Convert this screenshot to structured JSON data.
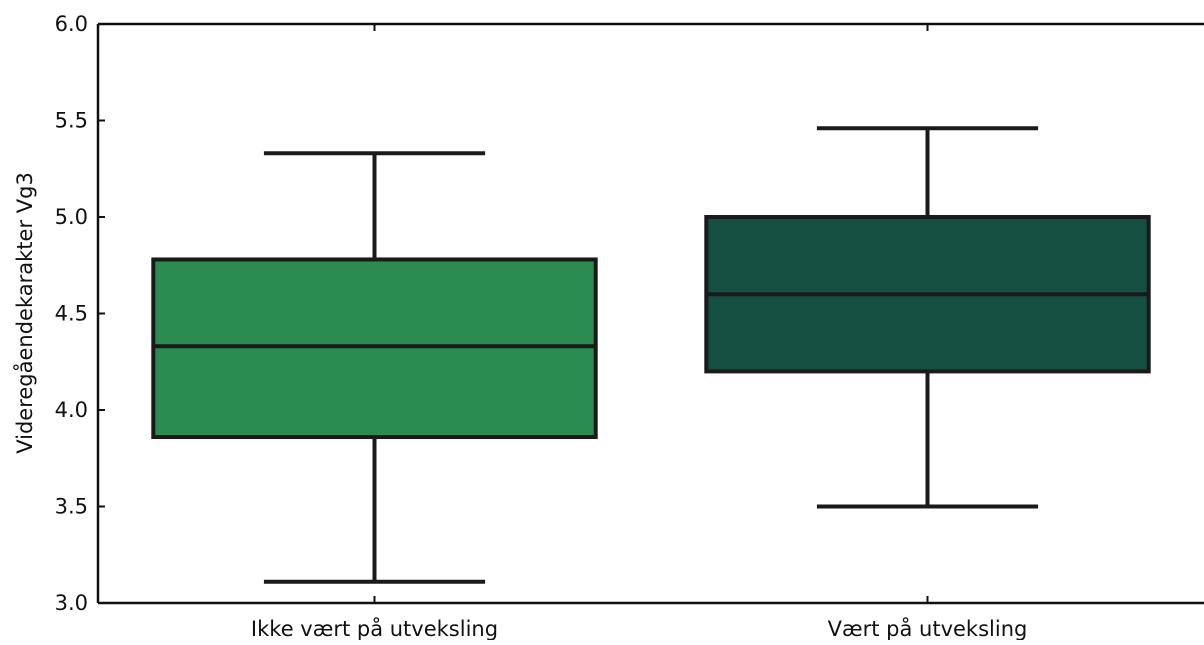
{
  "chart_data": {
    "type": "box",
    "ylabel": "Videregåendekarakter Vg3",
    "xlabel": "",
    "ylim": [
      3.0,
      6.0
    ],
    "yticks": [
      "3.0",
      "3.5",
      "4.0",
      "4.5",
      "5.0",
      "5.5",
      "6.0"
    ],
    "categories": [
      "Ikke vært på utveksling",
      "Vært på utveksling"
    ],
    "boxes": [
      {
        "category": "Ikke vært på utveksling",
        "whisker_low": 3.11,
        "q1": 3.86,
        "median": 4.33,
        "q3": 4.78,
        "whisker_high": 5.33,
        "color": "#2b8c4f"
      },
      {
        "category": "Vært på utveksling",
        "whisker_low": 3.5,
        "q1": 4.2,
        "median": 4.6,
        "q3": 5.0,
        "whisker_high": 5.46,
        "color": "#144f42"
      }
    ],
    "grid": false,
    "legend": "none"
  }
}
